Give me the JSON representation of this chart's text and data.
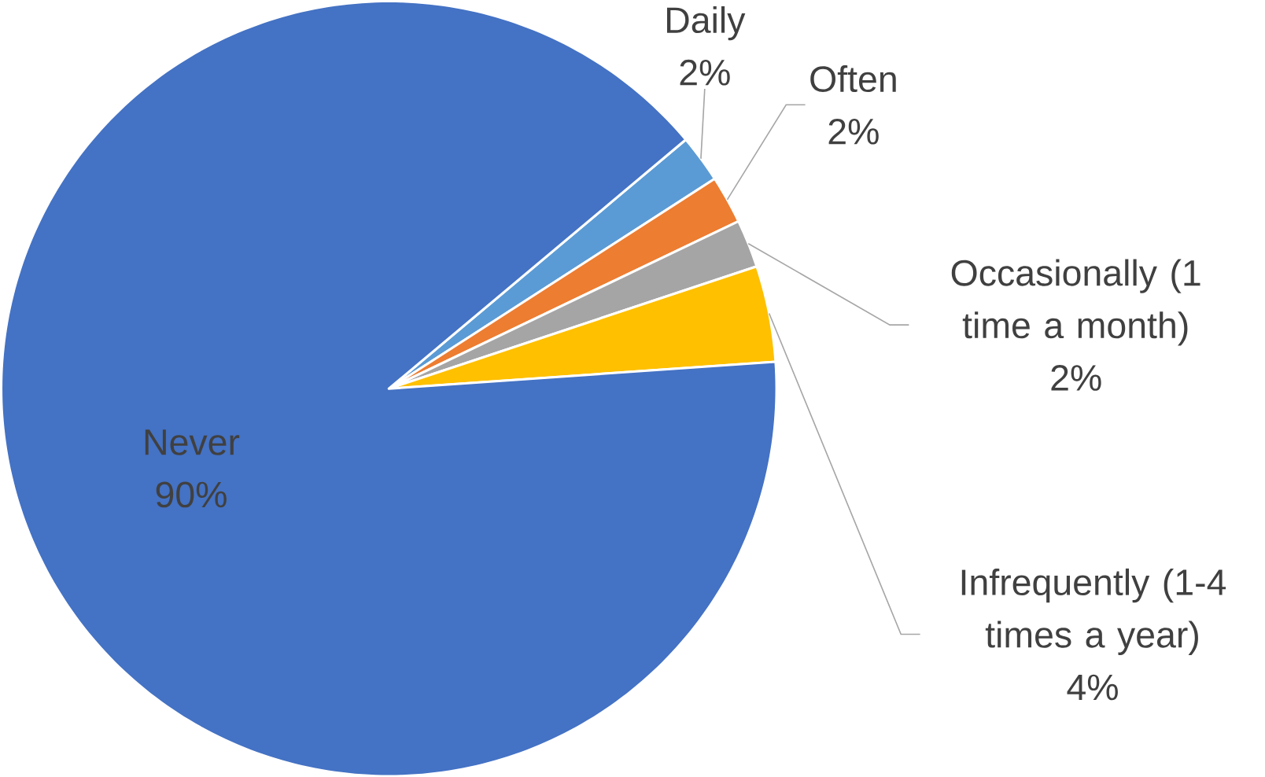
{
  "chart_data": {
    "type": "pie",
    "categories": [
      "Daily",
      "Often",
      "Occasionally (1 time a month)",
      "Infrequently (1-4 times a year)",
      "Never"
    ],
    "values": [
      2,
      2,
      2,
      4,
      90
    ],
    "value_labels": [
      "2%",
      "2%",
      "2%",
      "4%",
      "90%"
    ],
    "colors": [
      "#5b9bd5",
      "#ed7d31",
      "#a5a5a5",
      "#ffc000",
      "#4472c4"
    ]
  }
}
